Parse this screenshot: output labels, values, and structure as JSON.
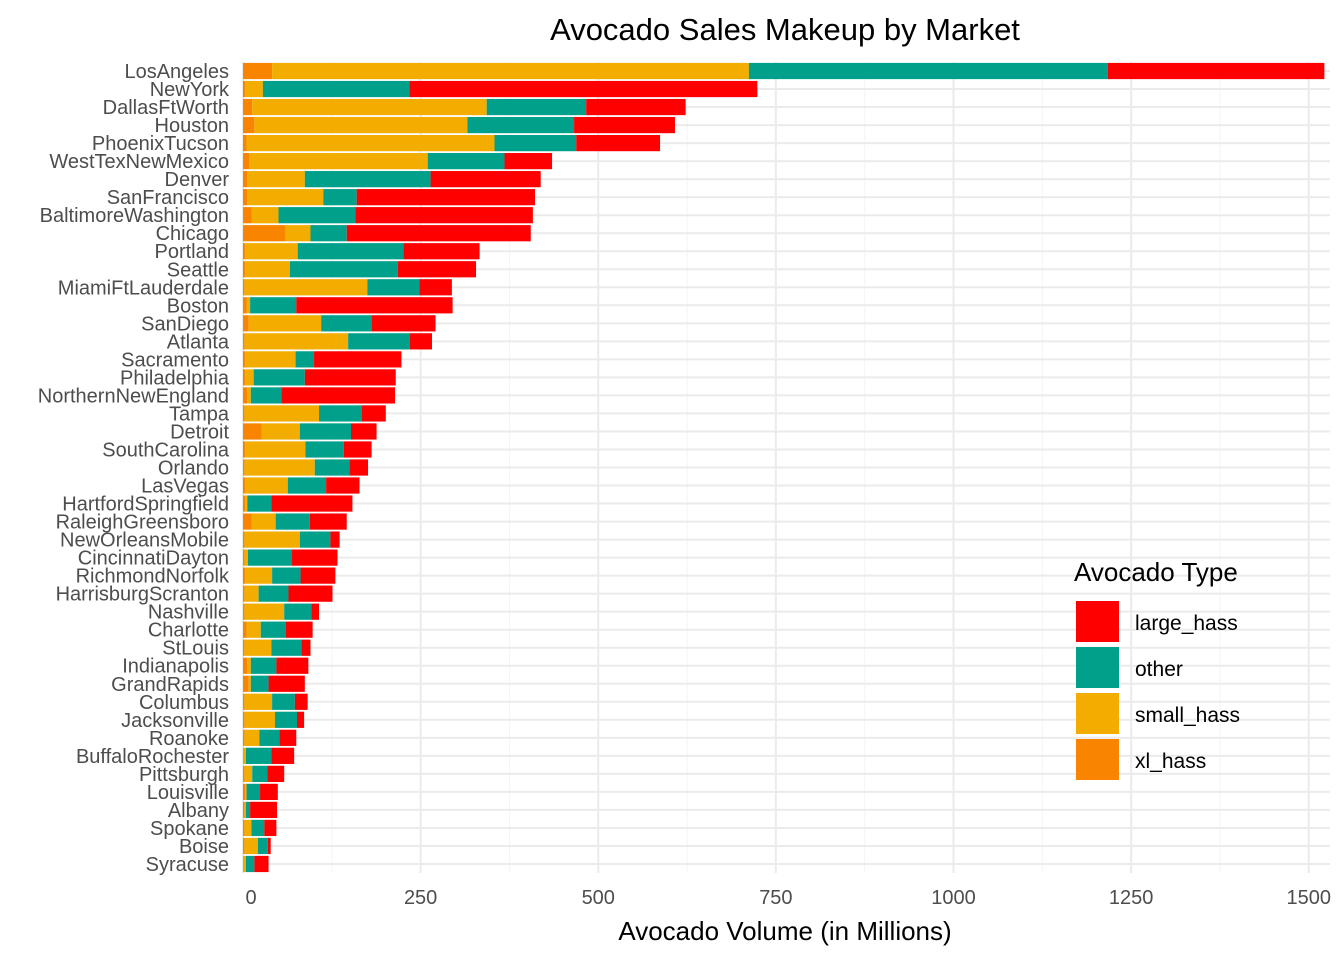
{
  "chart_data": {
    "type": "bar",
    "orientation": "horizontal",
    "stacked": true,
    "title": "Avocado Sales Makeup by Market",
    "xlabel": "Avocado Volume (in Millions)",
    "ylabel": "",
    "xlim": [
      0,
      1520
    ],
    "xticks": [
      0,
      250,
      500,
      750,
      1000,
      1250,
      1500
    ],
    "grid": true,
    "legend": {
      "title": "Avocado Type",
      "position": "right",
      "order": [
        "large_hass",
        "other",
        "small_hass",
        "xl_hass"
      ]
    },
    "stack_order": [
      "xl_hass",
      "small_hass",
      "other",
      "large_hass"
    ],
    "colors": {
      "large_hass": "#ff0000",
      "other": "#00a08a",
      "small_hass": "#f2ad00",
      "xl_hass": "#f98400"
    },
    "categories": [
      "LosAngeles",
      "NewYork",
      "DallasFtWorth",
      "Houston",
      "PhoenixTucson",
      "WestTexNewMexico",
      "Denver",
      "SanFrancisco",
      "BaltimoreWashington",
      "Chicago",
      "Portland",
      "Seattle",
      "MiamiFtLauderdale",
      "Boston",
      "SanDiego",
      "Atlanta",
      "Sacramento",
      "Philadelphia",
      "NorthernNewEngland",
      "Tampa",
      "Detroit",
      "SouthCarolina",
      "Orlando",
      "LasVegas",
      "HartfordSpringfield",
      "RaleighGreensboro",
      "NewOrleansMobile",
      "CincinnatiDayton",
      "RichmondNorfolk",
      "HarrisburgScranton",
      "Nashville",
      "Charlotte",
      "StLouis",
      "Indianapolis",
      "GrandRapids",
      "Columbus",
      "Jacksonville",
      "Roanoke",
      "BuffaloRochester",
      "Pittsburgh",
      "Louisville",
      "Albany",
      "Spokane",
      "Boise",
      "Syracuse"
    ],
    "series": [
      {
        "name": "xl_hass",
        "values": [
          41,
          3,
          13,
          16,
          5,
          9,
          6,
          6,
          12,
          60,
          3,
          3,
          2,
          5,
          8,
          2,
          3,
          3,
          6,
          2,
          26,
          3,
          2,
          3,
          3,
          12,
          2,
          2,
          3,
          2,
          2,
          5,
          2,
          6,
          8,
          2,
          2,
          2,
          1,
          2,
          3,
          2,
          2,
          2,
          1
        ]
      },
      {
        "name": "small_hass",
        "values": [
          671,
          25,
          330,
          300,
          349,
          251,
          81,
          107,
          38,
          35,
          74,
          63,
          173,
          5,
          102,
          146,
          71,
          12,
          5,
          105,
          54,
          85,
          99,
          60,
          3,
          34,
          78,
          5,
          38,
          20,
          56,
          20,
          38,
          5,
          3,
          39,
          43,
          21,
          3,
          11,
          2,
          2,
          10,
          19,
          3
        ]
      },
      {
        "name": "other",
        "values": [
          505,
          206,
          140,
          150,
          115,
          108,
          177,
          47,
          108,
          51,
          149,
          152,
          73,
          65,
          71,
          87,
          26,
          72,
          43,
          60,
          72,
          54,
          49,
          54,
          34,
          48,
          43,
          62,
          40,
          42,
          38,
          35,
          42,
          36,
          25,
          32,
          31,
          28,
          36,
          21,
          19,
          6,
          18,
          14,
          12
        ]
      },
      {
        "name": "large_hass",
        "values": [
          305,
          490,
          140,
          142,
          118,
          67,
          155,
          251,
          250,
          259,
          107,
          110,
          46,
          220,
          90,
          31,
          123,
          128,
          160,
          34,
          36,
          39,
          26,
          47,
          114,
          52,
          13,
          64,
          49,
          62,
          11,
          38,
          13,
          45,
          51,
          18,
          10,
          24,
          32,
          24,
          25,
          38,
          17,
          4,
          20
        ]
      }
    ]
  }
}
